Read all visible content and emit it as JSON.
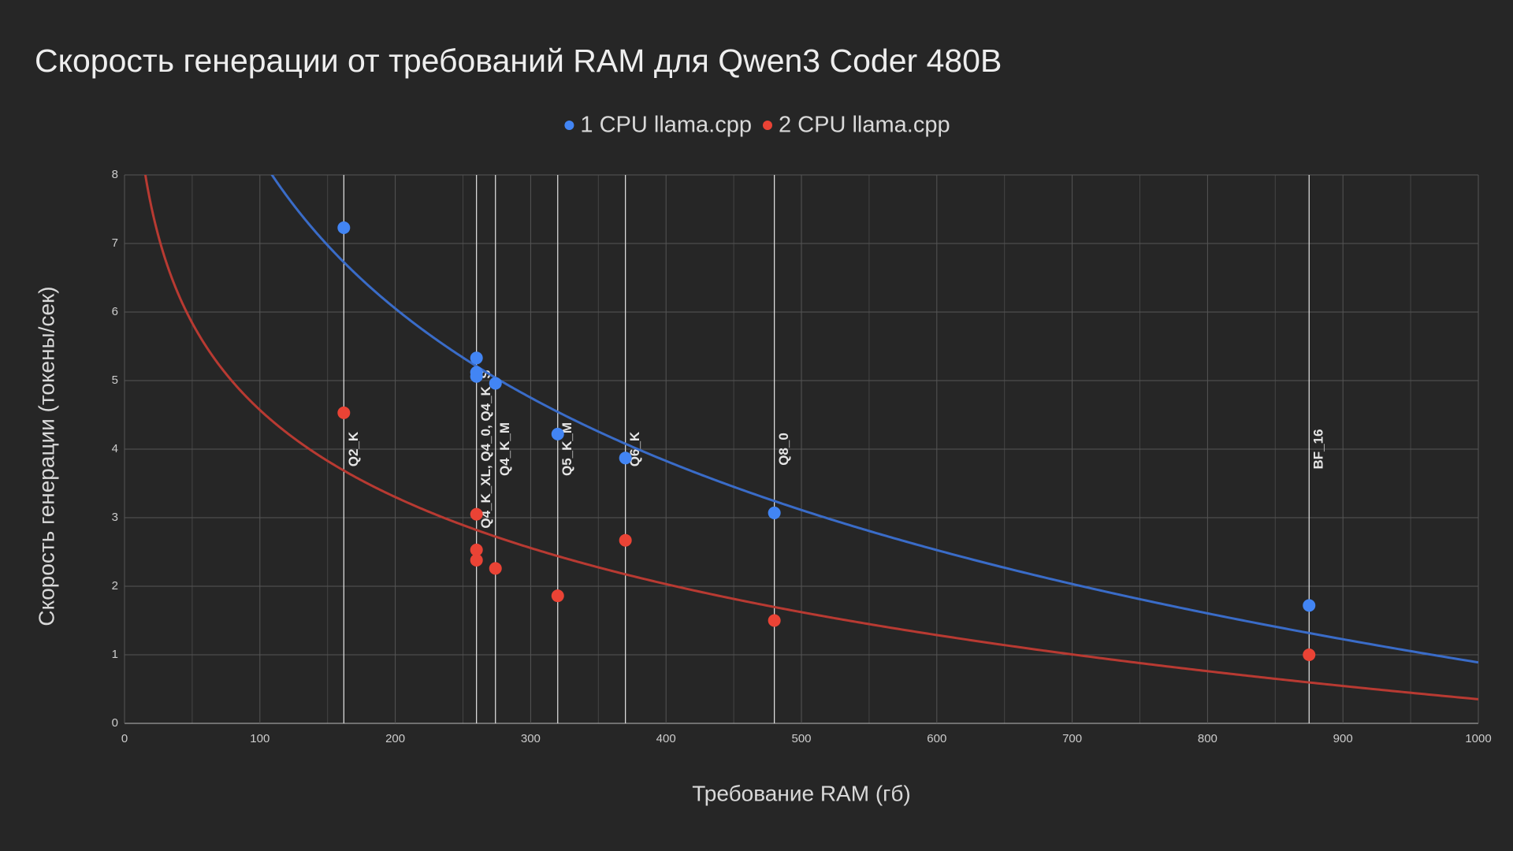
{
  "chart_data": {
    "type": "scatter",
    "title": "Скорость генерации от требований RAM для Qwen3 Coder 480B",
    "x_label": "Требование RAM (гб)",
    "y_label": "Скорость генерации (токены/сек)",
    "x": [
      162,
      260,
      260,
      260,
      274,
      320,
      370,
      480,
      875
    ],
    "series": [
      {
        "name": "1 CPU llama.cpp",
        "color": "#4285f4",
        "trendline_color": "#3a6cc8",
        "values": [
          7.23,
          5.33,
          5.12,
          5.06,
          4.96,
          4.22,
          3.87,
          3.07,
          1.72
        ]
      },
      {
        "name": "2 CPU llama.cpp",
        "color": "#ea4335",
        "trendline_color": "#b83a32",
        "values": [
          4.53,
          3.05,
          2.53,
          2.38,
          2.26,
          1.86,
          2.67,
          1.5,
          1.0
        ]
      }
    ],
    "trendline": "logarithmic",
    "annotations": [
      {
        "x": 162,
        "label": "Q2_K"
      },
      {
        "x": 260,
        "label": "Q4_K_XL, Q4_0, Q4_K_S"
      },
      {
        "x": 274,
        "label": "Q4_K_M"
      },
      {
        "x": 320,
        "label": "Q5_K_M"
      },
      {
        "x": 370,
        "label": "Q6_K"
      },
      {
        "x": 480,
        "label": "Q8_0"
      },
      {
        "x": 875,
        "label": "BF_16"
      }
    ],
    "xlim": [
      0,
      1000
    ],
    "xticks": [
      0,
      100,
      200,
      300,
      400,
      500,
      600,
      700,
      800,
      900,
      1000
    ],
    "x_minor_gridlines": [
      50,
      150,
      250,
      350,
      450,
      550,
      650,
      750,
      850,
      950
    ],
    "ylim": [
      0,
      8
    ],
    "yticks": [
      0,
      1,
      2,
      3,
      4,
      5,
      6,
      7,
      8
    ],
    "grid": true,
    "legend": "top"
  }
}
